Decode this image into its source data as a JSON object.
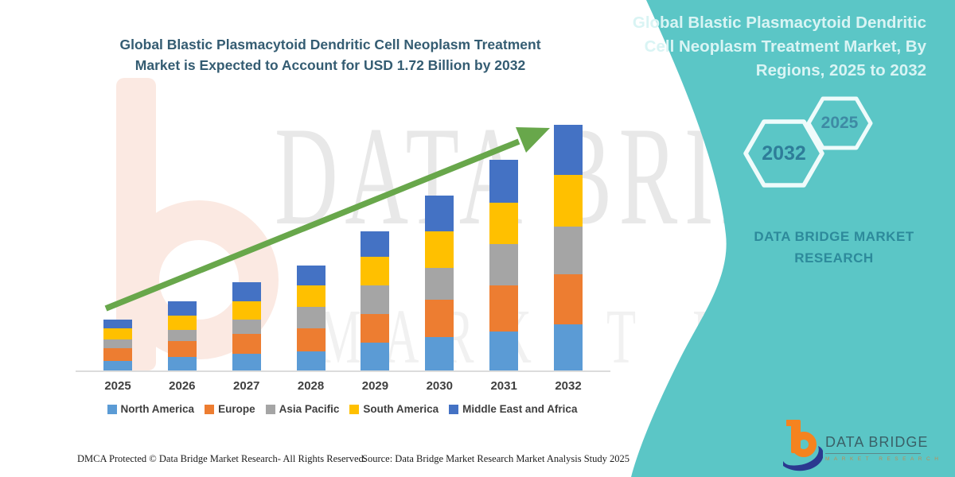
{
  "header": {
    "title_lines": [
      "Global Blastic Plasmacytoid Dendritic Cell Neoplasm Treatment",
      "Market is Expected to Account for USD 1.72 Billion by 2032"
    ]
  },
  "sidebar": {
    "title_lines": [
      "Global Blastic Plasmacytoid Dendritic",
      "Cell Neoplasm Treatment Market, By",
      "Regions, 2025 to 2032"
    ],
    "hexagons": [
      {
        "label": "2032"
      },
      {
        "label": "2025"
      }
    ],
    "brand": "DATA BRIDGE MARKET RESEARCH",
    "accent_color": "#5bc6c6"
  },
  "chart_data": {
    "type": "bar",
    "stacked": true,
    "title": "Global Blastic Plasmacytoid Dendritic Cell Neoplasm Treatment Market is Expected to Account for USD 1.72 Billion by 2032",
    "unit": "USD Billion",
    "categories": [
      "2025",
      "2026",
      "2027",
      "2028",
      "2029",
      "2030",
      "2031",
      "2032"
    ],
    "series": [
      {
        "name": "North America",
        "color": "#5B9BD5",
        "values": [
          0.07,
          0.1,
          0.12,
          0.14,
          0.2,
          0.24,
          0.28,
          0.33
        ]
      },
      {
        "name": "Europe",
        "color": "#ED7D31",
        "values": [
          0.09,
          0.11,
          0.14,
          0.16,
          0.2,
          0.26,
          0.32,
          0.35
        ]
      },
      {
        "name": "Asia Pacific",
        "color": "#A5A5A5",
        "values": [
          0.06,
          0.08,
          0.1,
          0.15,
          0.2,
          0.22,
          0.29,
          0.33
        ]
      },
      {
        "name": "South America",
        "color": "#FFC000",
        "values": [
          0.08,
          0.1,
          0.13,
          0.15,
          0.2,
          0.26,
          0.29,
          0.36
        ]
      },
      {
        "name": "Middle East and Africa",
        "color": "#4472C4",
        "values": [
          0.06,
          0.1,
          0.13,
          0.14,
          0.18,
          0.25,
          0.3,
          0.35
        ]
      }
    ],
    "totals": [
      0.36,
      0.49,
      0.62,
      0.74,
      0.98,
      1.23,
      1.48,
      1.72
    ],
    "xlabel": "",
    "ylabel": "",
    "ylim": [
      0,
      1.9
    ],
    "grid": false,
    "y_axis_visible": false,
    "legend_position": "bottom",
    "annotations": [
      "upward green trend arrow across bars"
    ],
    "arrow_color": "#68a74b"
  },
  "watermark": {
    "line1": "DATA BRIDGE",
    "line2": "MARKET RESEARCH"
  },
  "logo": {
    "name": "DATA BRIDGE",
    "tagline": "MARKET RESEARCH"
  },
  "footer": {
    "left": "DMCA Protected © Data Bridge Market Research-  All Rights Reserved.",
    "right": "Source: Data Bridge Market Research  Market Analysis Study 2025"
  }
}
